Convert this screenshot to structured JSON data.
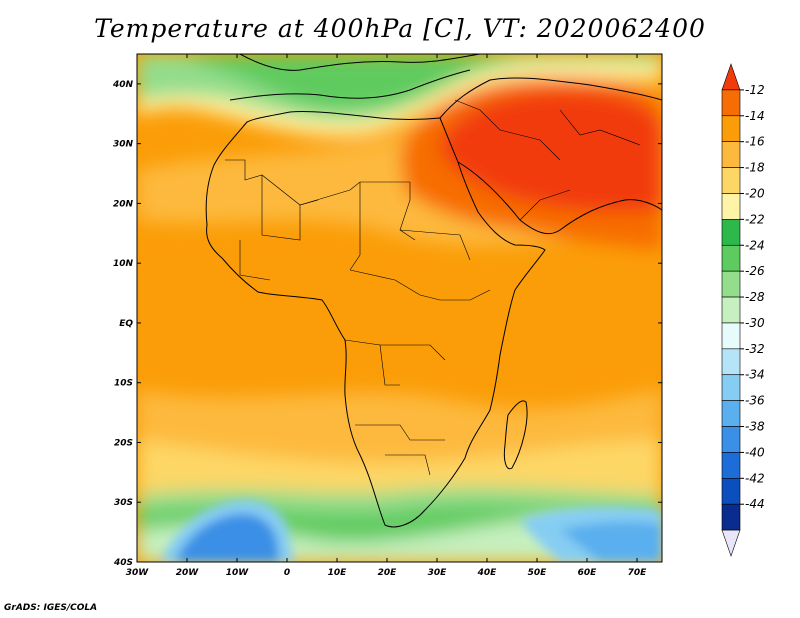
{
  "title": "Temperature at 400hPa [C], VT: 2020062400",
  "credit": "GrADS: IGES/COLA",
  "map": {
    "lon_range": [
      -30,
      75
    ],
    "lat_range": [
      -40,
      45
    ],
    "lon_ticks": [
      "30W",
      "20W",
      "10W",
      "0",
      "10E",
      "20E",
      "30E",
      "40E",
      "50E",
      "60E",
      "70E"
    ],
    "lat_ticks": [
      "40S",
      "30S",
      "20S",
      "10S",
      "EQ",
      "10N",
      "20N",
      "30N",
      "40N"
    ]
  },
  "colorbar": {
    "labels": [
      "-12",
      "-14",
      "-16",
      "-18",
      "-20",
      "-22",
      "-24",
      "-26",
      "-28",
      "-30",
      "-32",
      "-34",
      "-36",
      "-38",
      "-40",
      "-42",
      "-44"
    ],
    "colors": [
      "#f23b0b",
      "#f76d05",
      "#fb9d08",
      "#fdb93e",
      "#fdd766",
      "#fff3a8",
      "#2db84b",
      "#5ecb5e",
      "#93dd8c",
      "#c6f0bf",
      "#e8fbfb",
      "#b5e3f7",
      "#86cdf3",
      "#5aafee",
      "#3a8fe6",
      "#1d6dd8",
      "#0b4fbf",
      "#0a2c8f",
      "#e8e6f8"
    ]
  }
}
